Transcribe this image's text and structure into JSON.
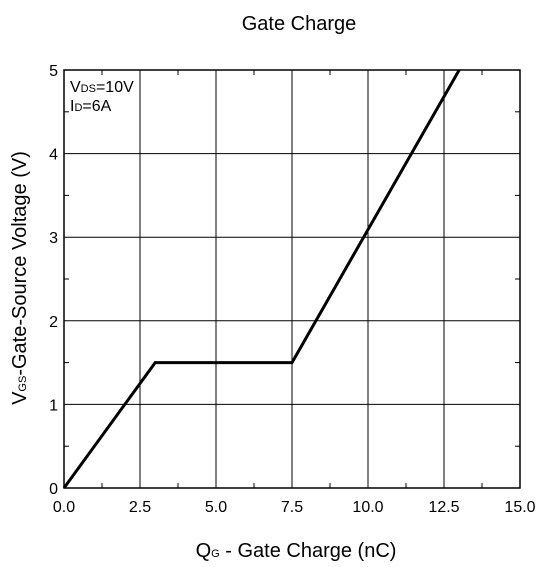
{
  "chart_data": {
    "type": "line",
    "title": "Gate Charge",
    "xlabel": {
      "main": "Q",
      "sub": "G",
      "rest": " - Gate Charge (nC)"
    },
    "ylabel": {
      "main": "V",
      "sub": "GS",
      "rest": "-Gate-Source Voltage (V)"
    },
    "conditions": [
      {
        "main": "V",
        "sub": "DS",
        "rest": "=10V"
      },
      {
        "main": "I",
        "sub": "D",
        "rest": "=6A"
      }
    ],
    "xlim": [
      0,
      15
    ],
    "ylim": [
      0,
      5
    ],
    "x_ticks": [
      "0.0",
      "2.5",
      "5.0",
      "7.5",
      "10.0",
      "12.5",
      "15.0"
    ],
    "y_ticks": [
      "0",
      "1",
      "2",
      "3",
      "4",
      "5"
    ],
    "grid": true,
    "series": [
      {
        "x": [
          0,
          3.0,
          7.5,
          13.0
        ],
        "y": [
          0,
          1.5,
          1.5,
          5.0
        ]
      }
    ]
  }
}
